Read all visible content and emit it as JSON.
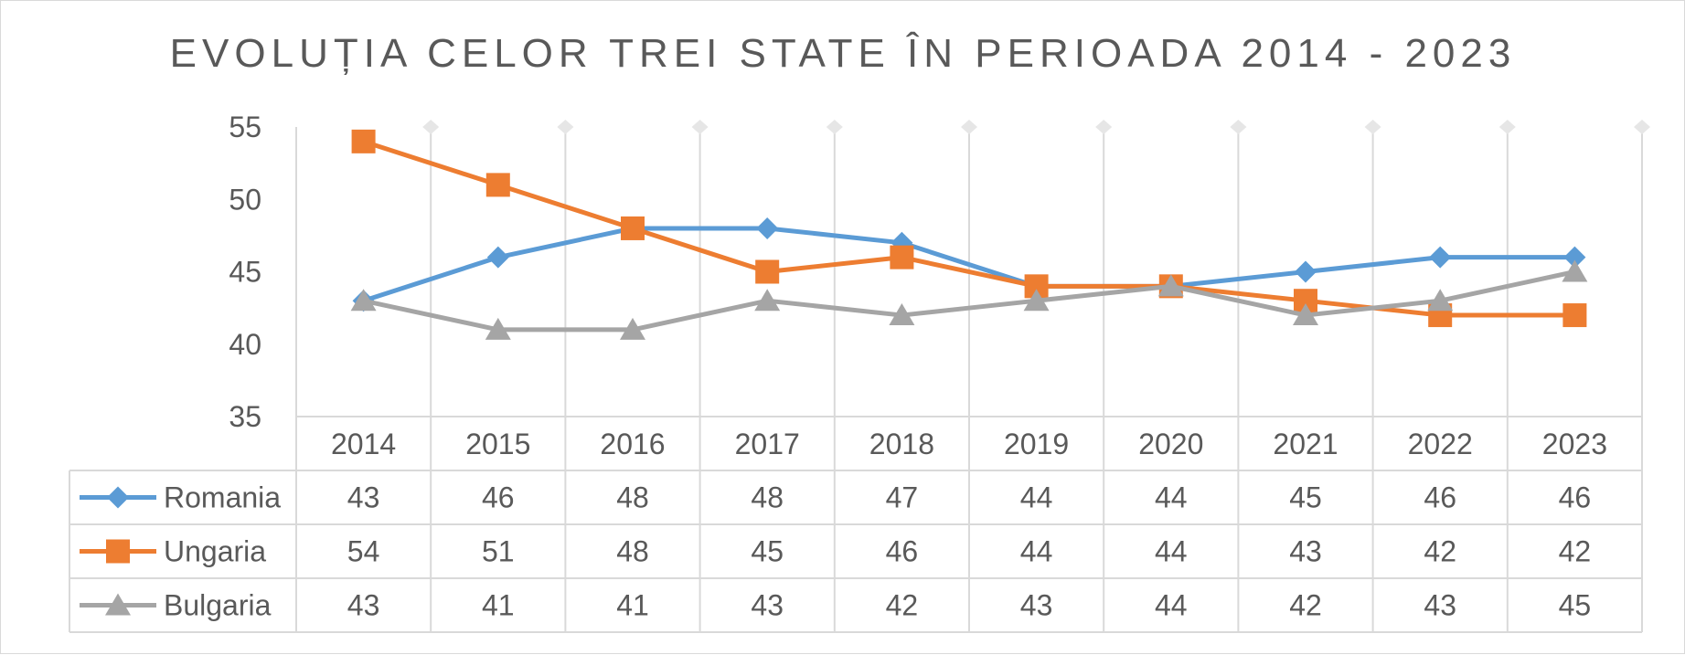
{
  "chart_data": {
    "type": "line",
    "title": "EVOLUȚIA CELOR TREI STATE ÎN PERIOADA 2014 - 2023",
    "categories": [
      "2014",
      "2015",
      "2016",
      "2017",
      "2018",
      "2019",
      "2020",
      "2021",
      "2022",
      "2023"
    ],
    "ylim": [
      35,
      55
    ],
    "yticks": [
      35,
      40,
      45,
      50,
      55
    ],
    "grid": "vertical",
    "legend": "data-table",
    "series": [
      {
        "name": "Romania",
        "marker": "diamond",
        "color": "#5b9bd5",
        "values": [
          43,
          46,
          48,
          48,
          47,
          44,
          44,
          45,
          46,
          46
        ]
      },
      {
        "name": "Ungaria",
        "marker": "square",
        "color": "#ed7d31",
        "values": [
          54,
          51,
          48,
          45,
          46,
          44,
          44,
          43,
          42,
          42
        ]
      },
      {
        "name": "Bulgaria",
        "marker": "triangle",
        "color": "#a5a5a5",
        "values": [
          43,
          41,
          41,
          43,
          42,
          43,
          44,
          42,
          43,
          45
        ]
      }
    ]
  }
}
